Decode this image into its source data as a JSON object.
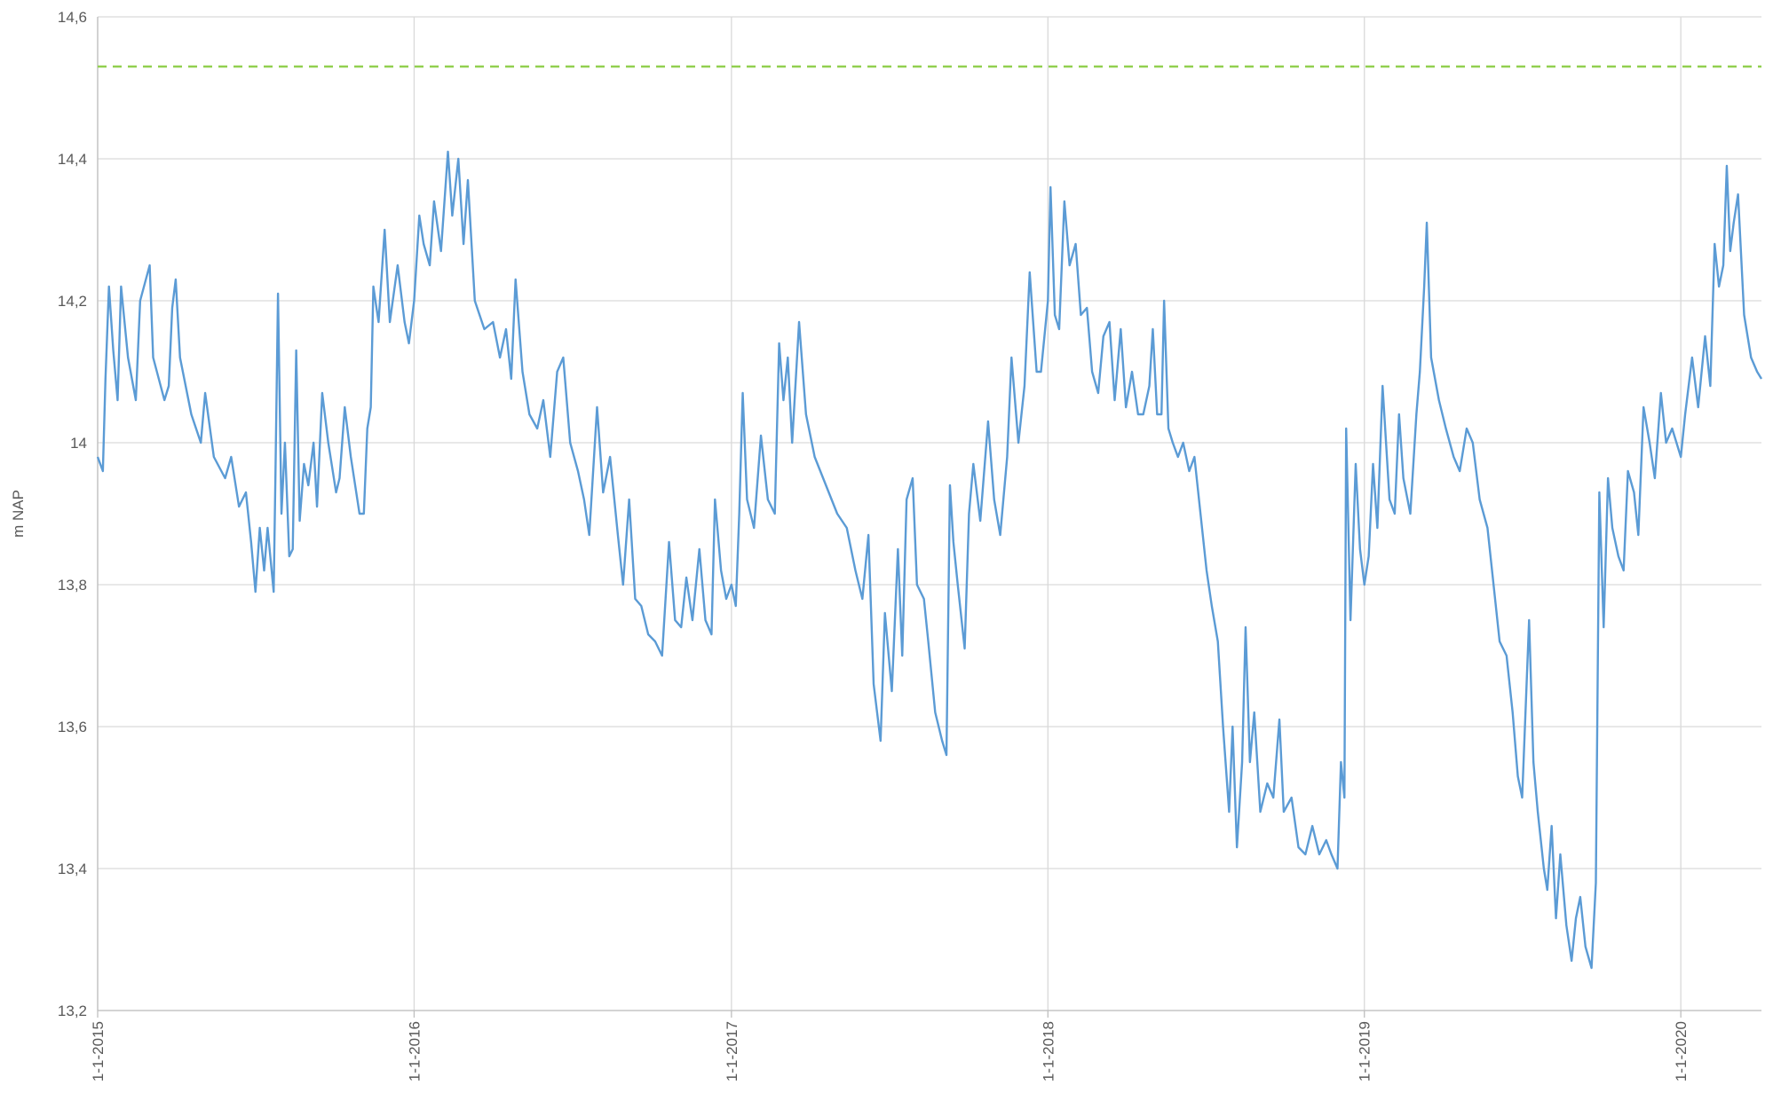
{
  "chart_data": {
    "type": "line",
    "y_label": "m NAP",
    "xlim": [
      "1-1-2015",
      "3-4-2020"
    ],
    "xticks": [
      "1-1-2015",
      "1-1-2016",
      "1-1-2017",
      "1-1-2018",
      "1-1-2019",
      "1-1-2020"
    ],
    "ylim": [
      13.2,
      14.6
    ],
    "yticks": [
      {
        "value": 13.2,
        "label": "13,2"
      },
      {
        "value": 13.4,
        "label": "13,4"
      },
      {
        "value": 13.6,
        "label": "13,6"
      },
      {
        "value": 13.8,
        "label": "13,8"
      },
      14,
      {
        "value": 14.2,
        "label": "14,2"
      },
      {
        "value": 14.4,
        "label": "14,4"
      },
      {
        "value": 14.6,
        "label": "14,6"
      }
    ],
    "grid": true,
    "reference_line": {
      "value": 14.53,
      "color": "#92d050"
    },
    "x": [
      "1-1-2015",
      "7-1-2015",
      "10-1-2015",
      "14-1-2015",
      "19-1-2015",
      "24-1-2015",
      "28-1-2015",
      "5-2-2015",
      "14-2-2015",
      "19-2-2015",
      "2-3-2015",
      "6-3-2015",
      "19-3-2015",
      "24-3-2015",
      "28-3-2015",
      "1-4-2015",
      "6-4-2015",
      "19-4-2015",
      "30-4-2015",
      "5-5-2015",
      "15-5-2015",
      "28-5-2015",
      "4-6-2015",
      "13-6-2015",
      "21-6-2015",
      "27-6-2015",
      "2-7-2015",
      "7-7-2015",
      "12-7-2015",
      "16-7-2015",
      "23-7-2015",
      "25-7-2015",
      "28-7-2015",
      "1-8-2015",
      "5-8-2015",
      "10-8-2015",
      "14-8-2015",
      "18-8-2015",
      "22-8-2015",
      "27-8-2015",
      "1-9-2015",
      "7-9-2015",
      "11-9-2015",
      "17-9-2015",
      "24-9-2015",
      "3-10-2015",
      "7-10-2015",
      "13-10-2015",
      "20-10-2015",
      "30-10-2015",
      "4-11-2015",
      "8-11-2015",
      "12-11-2015",
      "15-11-2015",
      "21-11-2015",
      "28-11-2015",
      "4-12-2015",
      "13-12-2015",
      "21-12-2015",
      "26-12-2015",
      "1-1-2016",
      "7-1-2016",
      "12-1-2016",
      "19-1-2016",
      "24-1-2016",
      "1-2-2016",
      "9-2-2016",
      "14-2-2016",
      "21-2-2016",
      "27-2-2016",
      "3-3-2016",
      "11-3-2016",
      "22-3-2016",
      "1-4-2016",
      "9-4-2016",
      "16-4-2016",
      "22-4-2016",
      "27-4-2016",
      "5-5-2016",
      "13-5-2016",
      "22-5-2016",
      "29-5-2016",
      "6-6-2016",
      "14-6-2016",
      "21-6-2016",
      "29-6-2016",
      "8-7-2016",
      "15-7-2016",
      "21-7-2016",
      "30-7-2016",
      "6-8-2016",
      "14-8-2016",
      "23-8-2016",
      "29-8-2016",
      "5-9-2016",
      "12-9-2016",
      "19-9-2016",
      "27-9-2016",
      "5-10-2016",
      "13-10-2016",
      "21-10-2016",
      "28-10-2016",
      "4-11-2016",
      "10-11-2016",
      "17-11-2016",
      "25-11-2016",
      "2-12-2016",
      "9-12-2016",
      "13-12-2016",
      "20-12-2016",
      "26-12-2016",
      "1-1-2017",
      "6-1-2017",
      "10-1-2017",
      "14-1-2017",
      "19-1-2017",
      "27-1-2017",
      "4-2-2017",
      "12-2-2017",
      "20-2-2017",
      "25-2-2017",
      "2-3-2017",
      "7-3-2017",
      "12-3-2017",
      "20-3-2017",
      "28-3-2017",
      "7-4-2017",
      "20-4-2017",
      "3-5-2017",
      "14-5-2017",
      "24-5-2017",
      "1-6-2017",
      "8-6-2017",
      "14-6-2017",
      "22-6-2017",
      "27-6-2017",
      "5-7-2017",
      "12-7-2017",
      "17-7-2017",
      "22-7-2017",
      "29-7-2017",
      "3-8-2017",
      "11-8-2017",
      "16-8-2017",
      "24-8-2017",
      "1-9-2017",
      "6-9-2017",
      "10-9-2017",
      "14-9-2017",
      "19-9-2017",
      "27-9-2017",
      "2-10-2017",
      "7-10-2017",
      "15-10-2017",
      "24-10-2017",
      "31-10-2017",
      "7-11-2017",
      "15-11-2017",
      "20-11-2017",
      "28-11-2017",
      "5-12-2017",
      "11-12-2017",
      "19-12-2017",
      "24-12-2017",
      "1-1-2018",
      "4-1-2018",
      "9-1-2018",
      "14-1-2018",
      "20-1-2018",
      "26-1-2018",
      "2-2-2018",
      "8-2-2018",
      "15-2-2018",
      "21-2-2018",
      "28-2-2018",
      "6-3-2018",
      "13-3-2018",
      "19-3-2018",
      "26-3-2018",
      "1-4-2018",
      "8-4-2018",
      "15-4-2018",
      "21-4-2018",
      "28-4-2018",
      "2-5-2018",
      "7-5-2018",
      "12-5-2018",
      "15-5-2018",
      "20-5-2018",
      "25-5-2018",
      "31-5-2018",
      "6-6-2018",
      "13-6-2018",
      "19-6-2018",
      "26-6-2018",
      "3-7-2018",
      "9-7-2018",
      "16-7-2018",
      "22-7-2018",
      "29-7-2018",
      "2-8-2018",
      "7-8-2018",
      "13-8-2018",
      "17-8-2018",
      "22-8-2018",
      "27-8-2018",
      "3-9-2018",
      "11-9-2018",
      "18-9-2018",
      "25-9-2018",
      "30-9-2018",
      "9-10-2018",
      "17-10-2018",
      "25-10-2018",
      "2-11-2018",
      "10-11-2018",
      "18-11-2018",
      "24-11-2018",
      "1-12-2018",
      "5-12-2018",
      "9-12-2018",
      "11-12-2018",
      "16-12-2018",
      "22-12-2018",
      "27-12-2018",
      "1-1-2019",
      "6-1-2019",
      "11-1-2019",
      "16-1-2019",
      "22-1-2019",
      "30-1-2019",
      "5-2-2019",
      "10-2-2019",
      "15-2-2019",
      "23-2-2019",
      "2-3-2019",
      "6-3-2019",
      "11-3-2019",
      "14-3-2019",
      "19-3-2019",
      "28-3-2019",
      "5-4-2019",
      "14-4-2019",
      "21-4-2019",
      "29-4-2019",
      "6-5-2019",
      "14-5-2019",
      "23-5-2019",
      "30-5-2019",
      "6-6-2019",
      "14-6-2019",
      "21-6-2019",
      "27-6-2019",
      "2-7-2019",
      "10-7-2019",
      "15-7-2019",
      "20-7-2019",
      "27-7-2019",
      "31-7-2019",
      "5-8-2019",
      "10-8-2019",
      "15-8-2019",
      "22-8-2019",
      "28-8-2019",
      "2-9-2019",
      "7-9-2019",
      "13-9-2019",
      "20-9-2019",
      "25-9-2019",
      "29-9-2019",
      "4-10-2019",
      "9-10-2019",
      "14-10-2019",
      "21-10-2019",
      "27-10-2019",
      "1-11-2019",
      "8-11-2019",
      "13-11-2019",
      "19-11-2019",
      "26-11-2019",
      "2-12-2019",
      "9-12-2019",
      "15-12-2019",
      "22-12-2019",
      "1-1-2020",
      "6-1-2020",
      "14-1-2020",
      "21-1-2020",
      "29-1-2020",
      "4-2-2020",
      "9-2-2020",
      "14-2-2020",
      "19-2-2020",
      "23-2-2020",
      "27-2-2020",
      "2-3-2020",
      "7-3-2020",
      "14-3-2020",
      "22-3-2020",
      "29-3-2020",
      "3-4-2020"
    ],
    "series": [
      {
        "color": "#5b9bd5",
        "values": [
          13.98,
          13.96,
          14.09,
          14.22,
          14.13,
          14.06,
          14.22,
          14.12,
          14.06,
          14.2,
          14.25,
          14.12,
          14.06,
          14.08,
          14.19,
          14.23,
          14.12,
          14.04,
          14.0,
          14.07,
          13.98,
          13.95,
          13.98,
          13.91,
          13.93,
          13.86,
          13.79,
          13.88,
          13.82,
          13.88,
          13.79,
          13.95,
          14.21,
          13.9,
          14.0,
          13.84,
          13.85,
          14.13,
          13.89,
          13.97,
          13.94,
          14.0,
          13.91,
          14.07,
          14.0,
          13.93,
          13.95,
          14.05,
          13.98,
          13.9,
          13.9,
          14.02,
          14.05,
          14.22,
          14.17,
          14.3,
          14.17,
          14.25,
          14.17,
          14.14,
          14.2,
          14.32,
          14.28,
          14.25,
          14.34,
          14.27,
          14.41,
          14.32,
          14.4,
          14.28,
          14.37,
          14.2,
          14.16,
          14.17,
          14.12,
          14.16,
          14.09,
          14.23,
          14.1,
          14.04,
          14.02,
          14.06,
          13.98,
          14.1,
          14.12,
          14.0,
          13.96,
          13.92,
          13.87,
          14.05,
          13.93,
          13.98,
          13.87,
          13.8,
          13.92,
          13.78,
          13.77,
          13.73,
          13.72,
          13.7,
          13.86,
          13.75,
          13.74,
          13.81,
          13.75,
          13.85,
          13.75,
          13.73,
          13.92,
          13.82,
          13.78,
          13.8,
          13.77,
          13.9,
          14.07,
          13.92,
          13.88,
          14.01,
          13.92,
          13.9,
          14.14,
          14.06,
          14.12,
          14.0,
          14.17,
          14.04,
          13.98,
          13.94,
          13.9,
          13.88,
          13.82,
          13.78,
          13.87,
          13.66,
          13.58,
          13.76,
          13.65,
          13.85,
          13.7,
          13.92,
          13.95,
          13.8,
          13.78,
          13.72,
          13.62,
          13.58,
          13.56,
          13.94,
          13.86,
          13.8,
          13.71,
          13.9,
          13.97,
          13.89,
          14.03,
          13.92,
          13.87,
          13.98,
          14.12,
          14.0,
          14.08,
          14.24,
          14.1,
          14.1,
          14.2,
          14.36,
          14.18,
          14.16,
          14.34,
          14.25,
          14.28,
          14.18,
          14.19,
          14.1,
          14.07,
          14.15,
          14.17,
          14.06,
          14.16,
          14.05,
          14.1,
          14.04,
          14.04,
          14.08,
          14.16,
          14.04,
          14.04,
          14.2,
          14.02,
          14.0,
          13.98,
          14.0,
          13.96,
          13.98,
          13.9,
          13.82,
          13.77,
          13.72,
          13.6,
          13.48,
          13.6,
          13.43,
          13.55,
          13.74,
          13.55,
          13.62,
          13.48,
          13.52,
          13.5,
          13.61,
          13.48,
          13.5,
          13.43,
          13.42,
          13.46,
          13.42,
          13.44,
          13.42,
          13.4,
          13.55,
          13.5,
          14.02,
          13.75,
          13.97,
          13.85,
          13.8,
          13.84,
          13.97,
          13.88,
          14.08,
          13.92,
          13.9,
          14.04,
          13.95,
          13.9,
          14.04,
          14.1,
          14.22,
          14.31,
          14.12,
          14.06,
          14.02,
          13.98,
          13.96,
          14.02,
          14.0,
          13.92,
          13.88,
          13.8,
          13.72,
          13.7,
          13.62,
          13.53,
          13.5,
          13.75,
          13.55,
          13.48,
          13.4,
          13.37,
          13.46,
          13.33,
          13.42,
          13.32,
          13.27,
          13.33,
          13.36,
          13.29,
          13.26,
          13.38,
          13.93,
          13.74,
          13.95,
          13.88,
          13.84,
          13.82,
          13.96,
          13.93,
          13.87,
          14.05,
          14.0,
          13.95,
          14.07,
          14.0,
          14.02,
          13.98,
          14.04,
          14.12,
          14.05,
          14.15,
          14.08,
          14.28,
          14.22,
          14.25,
          14.39,
          14.27,
          14.31,
          14.35,
          14.18,
          14.12,
          14.1,
          14.09
        ]
      }
    ]
  }
}
